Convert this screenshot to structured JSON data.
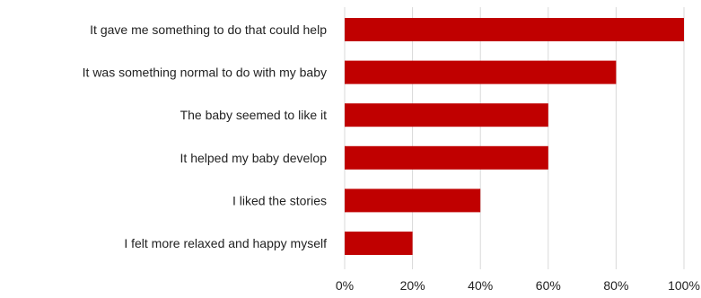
{
  "chart_data": {
    "type": "bar",
    "orientation": "horizontal",
    "categories": [
      "It gave me something to do that could help",
      "It was something normal to do with my baby",
      "The baby seemed to like it",
      "It helped my baby develop",
      "I liked the stories",
      "I felt more relaxed and happy myself"
    ],
    "values": [
      100,
      80,
      60,
      60,
      40,
      20
    ],
    "xlim": [
      0,
      100
    ],
    "xticks": [
      0,
      20,
      40,
      60,
      80,
      100
    ],
    "tick_labels": [
      "0%",
      "20%",
      "40%",
      "60%",
      "80%",
      "100%"
    ],
    "bar_color": "#c00000",
    "grid": true,
    "legend": "none"
  }
}
